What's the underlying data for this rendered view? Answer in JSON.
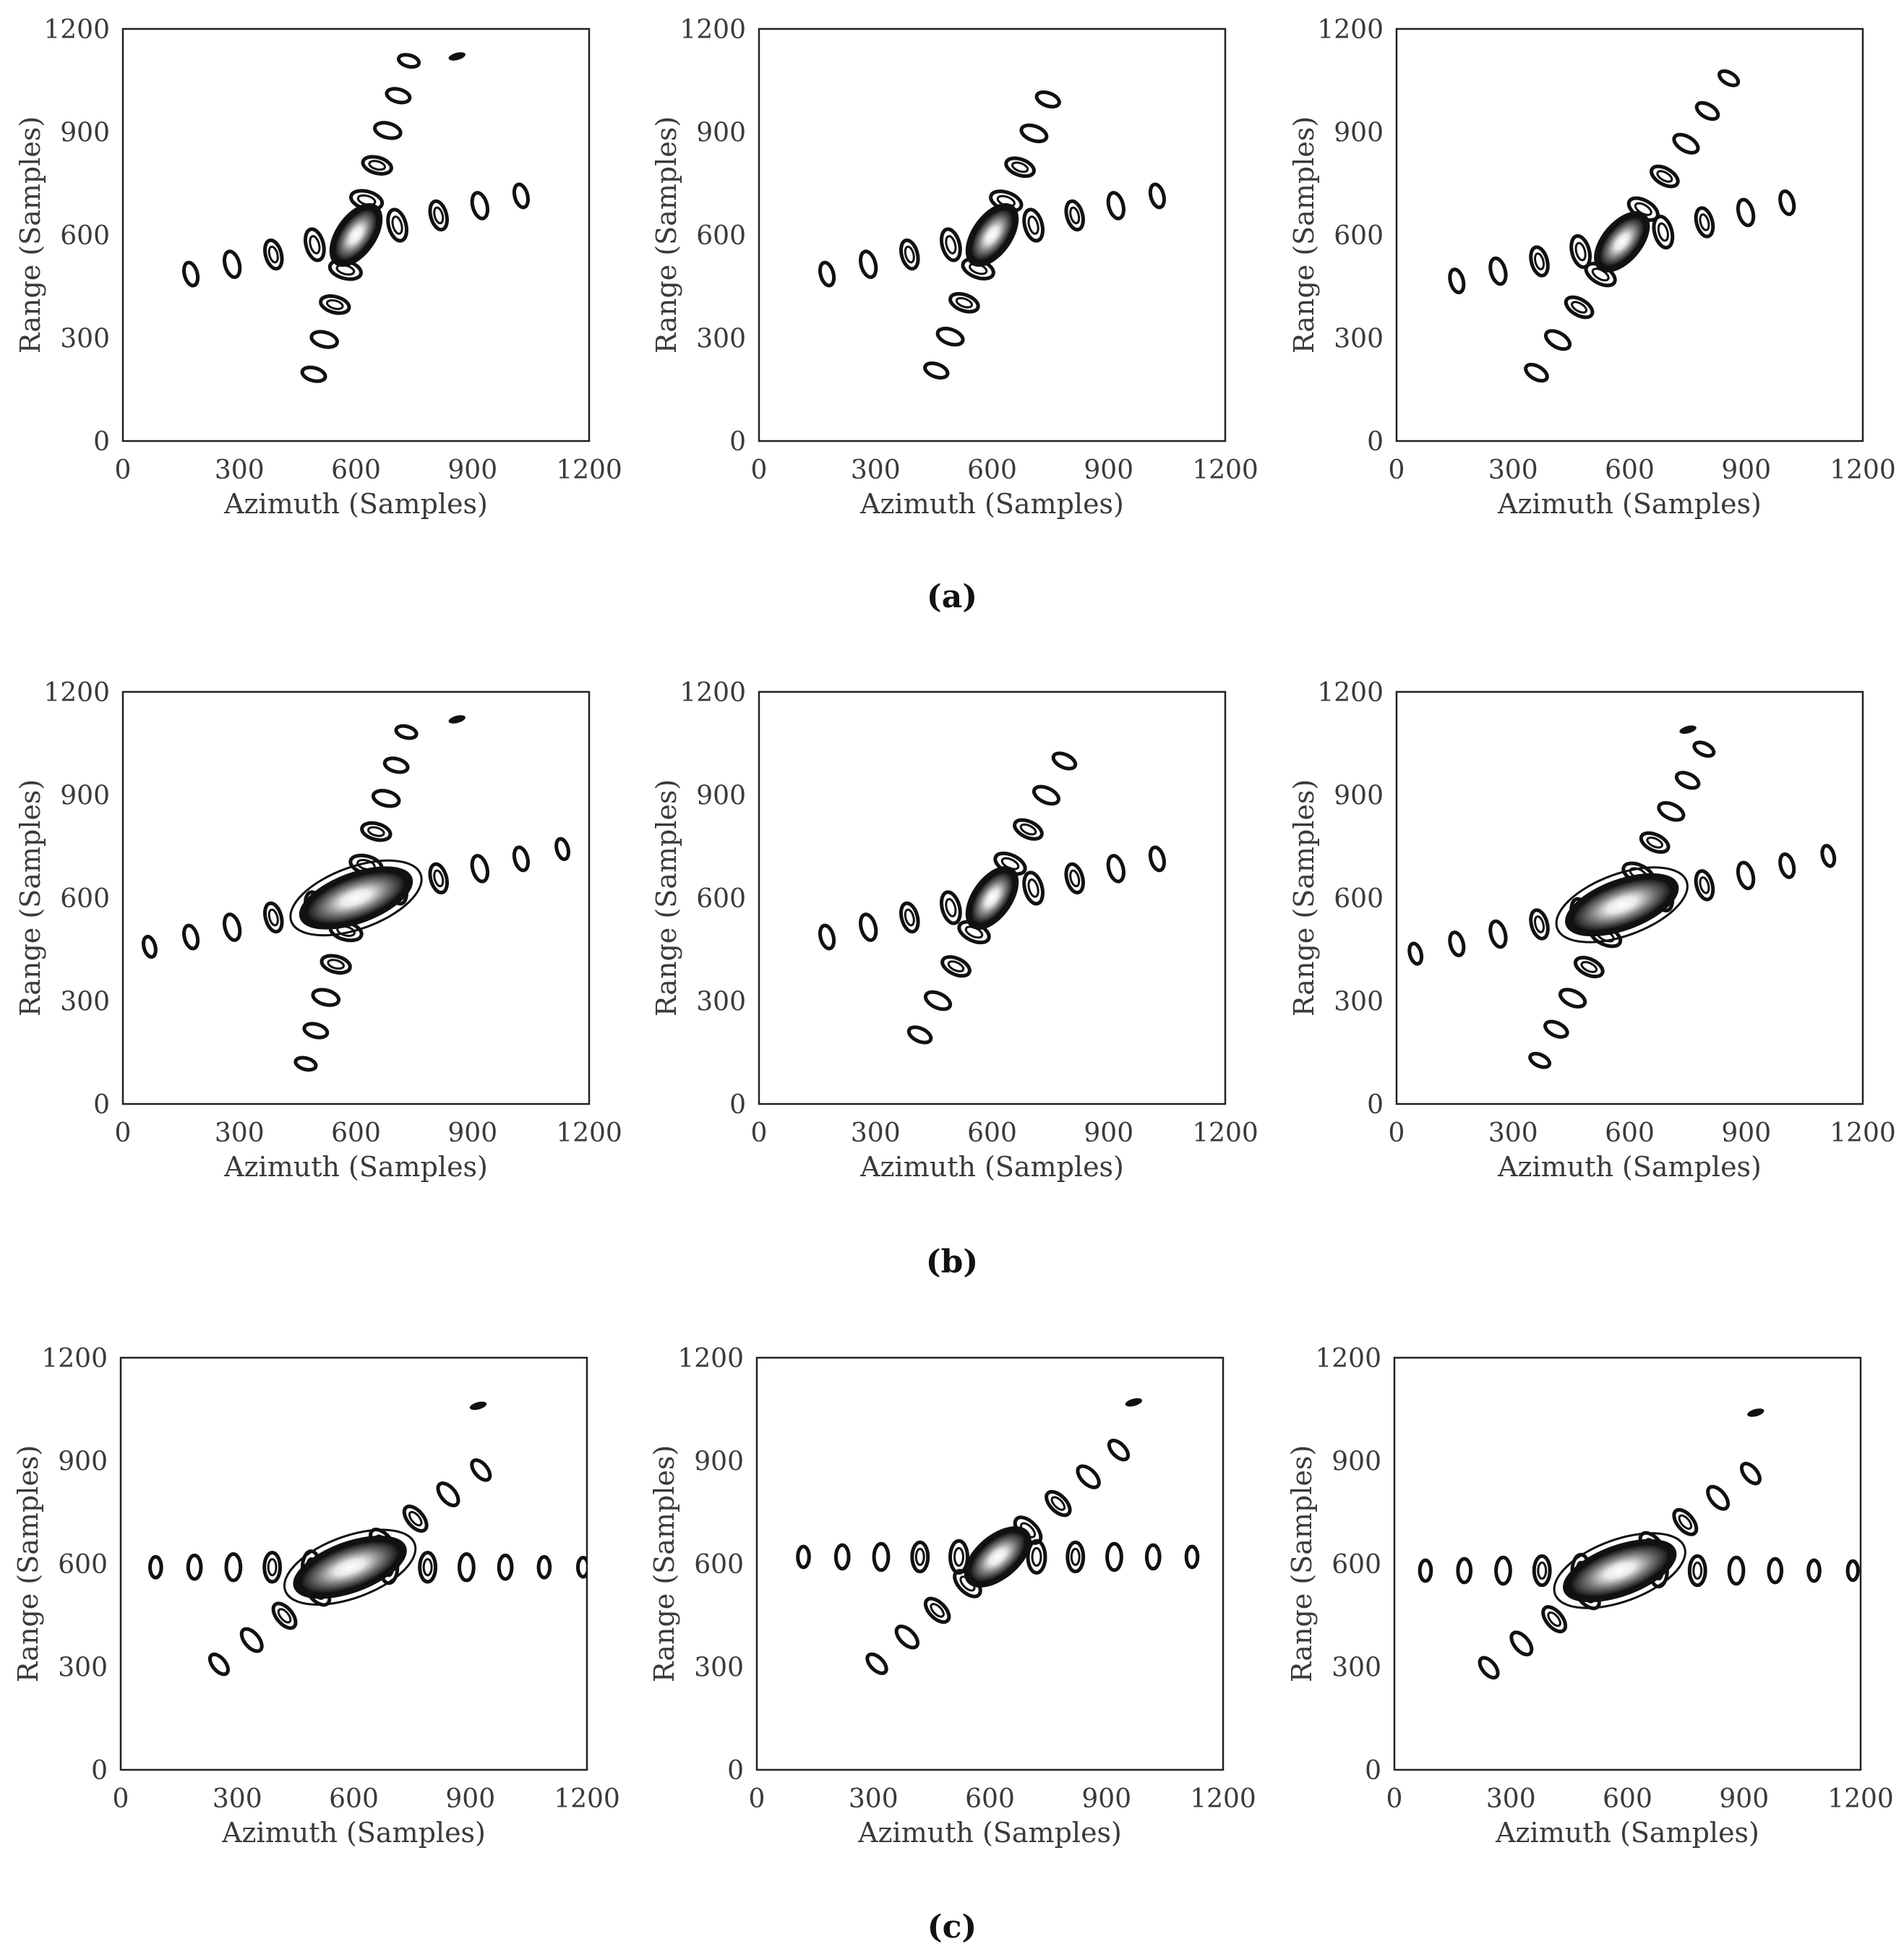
{
  "chart_data": {
    "type": "contour-grid",
    "description_labels": {
      "x_axis_label": "Azimuth (Samples)",
      "y_axis_label": "Range (Samples)"
    },
    "xlim": [
      0,
      1200
    ],
    "ylim": [
      0,
      1200
    ],
    "x_ticks": [
      "0",
      "300",
      "600",
      "900",
      "1200"
    ],
    "y_ticks": [
      "0",
      "300",
      "600",
      "900",
      "1200"
    ],
    "rows": [
      {
        "caption": "(a)",
        "panels": [
          {
            "name": "a-1",
            "center": [
              600,
              600
            ],
            "tilt_deg": 55,
            "main_axes": [
              80,
              40
            ],
            "arm1": {
              "angle_deg": 75,
              "spacing": 105,
              "count": 5
            },
            "arm2": {
              "angle_deg": 15,
              "spacing": 110,
              "count": 4
            },
            "arm1_neg": 4,
            "arm2_neg": 4,
            "smear": 0,
            "dots": [
              [
                860,
                1120
              ]
            ]
          },
          {
            "name": "a-2",
            "center": [
              600,
              600
            ],
            "tilt_deg": 55,
            "main_axes": [
              80,
              40
            ],
            "arm1": {
              "angle_deg": 70,
              "spacing": 105,
              "count": 4
            },
            "arm2": {
              "angle_deg": 15,
              "spacing": 110,
              "count": 4
            },
            "arm1_neg": 4,
            "arm2_neg": 4,
            "smear": 0,
            "dots": []
          },
          {
            "name": "a-3",
            "center": [
              580,
              580
            ],
            "tilt_deg": 50,
            "main_axes": [
              80,
              40
            ],
            "arm1": {
              "angle_deg": 60,
              "spacing": 110,
              "count": 5
            },
            "arm2": {
              "angle_deg": 15,
              "spacing": 110,
              "count": 4
            },
            "arm1_neg": 4,
            "arm2_neg": 4,
            "smear": 0,
            "dots": []
          }
        ]
      },
      {
        "caption": "(b)",
        "panels": [
          {
            "name": "b-1",
            "center": [
              600,
              600
            ],
            "tilt_deg": 20,
            "main_axes": [
              140,
              55
            ],
            "arm1": {
              "angle_deg": 75,
              "spacing": 100,
              "count": 5
            },
            "arm2": {
              "angle_deg": 15,
              "spacing": 110,
              "count": 5
            },
            "arm1_neg": 5,
            "arm2_neg": 5,
            "smear": 1,
            "dots": [
              [
                860,
                1120
              ]
            ]
          },
          {
            "name": "b-2",
            "center": [
              600,
              600
            ],
            "tilt_deg": 55,
            "main_axes": [
              80,
              40
            ],
            "arm1": {
              "angle_deg": 65,
              "spacing": 110,
              "count": 4
            },
            "arm2": {
              "angle_deg": 15,
              "spacing": 110,
              "count": 4
            },
            "arm1_neg": 4,
            "arm2_neg": 4,
            "smear": 0,
            "dots": []
          },
          {
            "name": "b-3",
            "center": [
              580,
              580
            ],
            "tilt_deg": 20,
            "main_axes": [
              140,
              55
            ],
            "arm1": {
              "angle_deg": 65,
              "spacing": 100,
              "count": 5
            },
            "arm2": {
              "angle_deg": 15,
              "spacing": 110,
              "count": 5
            },
            "arm1_neg": 5,
            "arm2_neg": 5,
            "smear": 1,
            "dots": [
              [
                750,
                1090
              ]
            ]
          }
        ]
      },
      {
        "caption": "(c)",
        "panels": [
          {
            "name": "c-1",
            "center": [
              590,
              590
            ],
            "tilt_deg": 20,
            "main_axes": [
              140,
              55
            ],
            "arm1": {
              "angle_deg": 40,
              "spacing": 110,
              "count": 4
            },
            "arm2": {
              "angle_deg": 0,
              "spacing": 100,
              "count": 6
            },
            "arm1_neg": 4,
            "arm2_neg": 5,
            "smear": 1,
            "dots": [
              [
                920,
                1060
              ]
            ]
          },
          {
            "name": "c-2",
            "center": [
              620,
              620
            ],
            "tilt_deg": 40,
            "main_axes": [
              90,
              45
            ],
            "arm1": {
              "angle_deg": 45,
              "spacing": 110,
              "count": 4
            },
            "arm2": {
              "angle_deg": 0,
              "spacing": 100,
              "count": 5
            },
            "arm1_neg": 4,
            "arm2_neg": 5,
            "smear": 0,
            "dots": [
              [
                970,
                1070
              ]
            ]
          },
          {
            "name": "c-3",
            "center": [
              580,
              580
            ],
            "tilt_deg": 20,
            "main_axes": [
              140,
              55
            ],
            "arm1": {
              "angle_deg": 40,
              "spacing": 110,
              "count": 4
            },
            "arm2": {
              "angle_deg": 0,
              "spacing": 100,
              "count": 6
            },
            "arm1_neg": 4,
            "arm2_neg": 5,
            "smear": 1,
            "dots": [
              [
                930,
                1040
              ]
            ]
          }
        ]
      }
    ]
  }
}
